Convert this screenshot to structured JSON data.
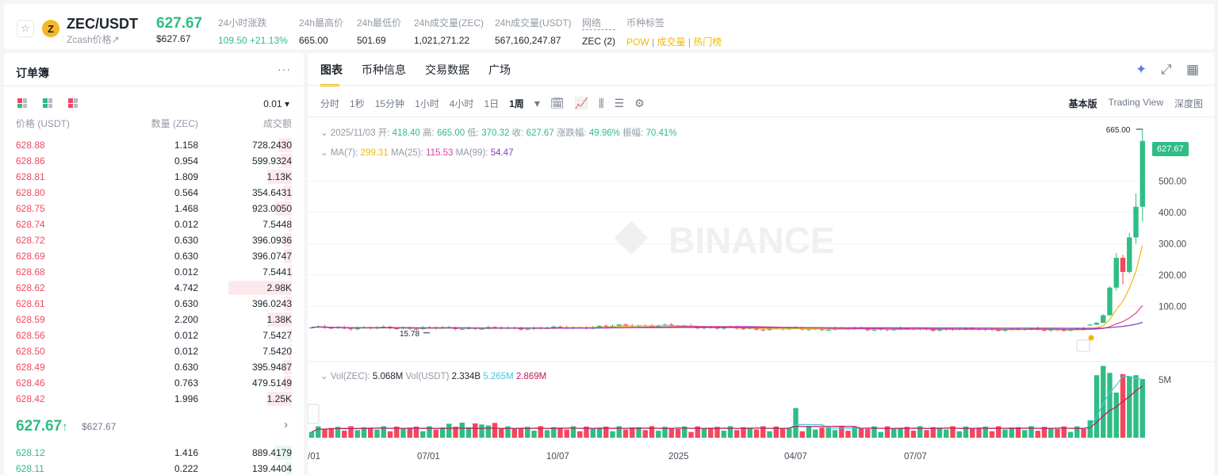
{
  "header": {
    "star_icon": "☆",
    "coin_icon": "Z",
    "symbol": "ZEC/USDT",
    "subtitle": "Zcash价格↗",
    "last_price": "627.67",
    "last_price_usd": "$627.67",
    "stats": [
      {
        "label": "24小时涨跌",
        "value": "109.50 +21.13%",
        "style": "up"
      },
      {
        "label": "24h最高价",
        "value": "665.00"
      },
      {
        "label": "24h最低价",
        "value": "501.69"
      },
      {
        "label": "24h成交量(ZEC)",
        "value": "1,021,271.22"
      },
      {
        "label": "24h成交量(USDT)",
        "value": "567,160,247.87"
      }
    ],
    "network_label": "网络",
    "network_value": "ZEC (2)",
    "tags_label": "币种标签",
    "tags": [
      "POW",
      "成交量",
      "热门榜"
    ]
  },
  "orderbook": {
    "title": "订单簿",
    "more": "···",
    "precision": "0.01 ▾",
    "head": {
      "price": "价格 (USDT)",
      "qty": "数量 (ZEC)",
      "total": "成交额"
    },
    "asks": [
      {
        "price": "628.88",
        "qty": "1.158",
        "total": "728.2430",
        "depth": 0.05
      },
      {
        "price": "628.86",
        "qty": "0.954",
        "total": "599.9324",
        "depth": 0.04
      },
      {
        "price": "628.81",
        "qty": "1.809",
        "total": "1.13K",
        "depth": 0.09
      },
      {
        "price": "628.80",
        "qty": "0.564",
        "total": "354.6431",
        "depth": 0.03
      },
      {
        "price": "628.75",
        "qty": "1.468",
        "total": "923.0050",
        "depth": 0.06
      },
      {
        "price": "628.74",
        "qty": "0.012",
        "total": "7.5448",
        "depth": 0.01
      },
      {
        "price": "628.72",
        "qty": "0.630",
        "total": "396.0936",
        "depth": 0.03
      },
      {
        "price": "628.69",
        "qty": "0.630",
        "total": "396.0747",
        "depth": 0.03
      },
      {
        "price": "628.68",
        "qty": "0.012",
        "total": "7.5441",
        "depth": 0.01
      },
      {
        "price": "628.62",
        "qty": "4.742",
        "total": "2.98K",
        "depth": 0.23
      },
      {
        "price": "628.61",
        "qty": "0.630",
        "total": "396.0243",
        "depth": 0.03
      },
      {
        "price": "628.59",
        "qty": "2.200",
        "total": "1.38K",
        "depth": 0.09
      },
      {
        "price": "628.56",
        "qty": "0.012",
        "total": "7.5427",
        "depth": 0.01
      },
      {
        "price": "628.50",
        "qty": "0.012",
        "total": "7.5420",
        "depth": 0.01
      },
      {
        "price": "628.49",
        "qty": "0.630",
        "total": "395.9487",
        "depth": 0.03
      },
      {
        "price": "628.46",
        "qty": "0.763",
        "total": "479.5149",
        "depth": 0.03
      },
      {
        "price": "628.42",
        "qty": "1.996",
        "total": "1.25K",
        "depth": 0.09
      }
    ],
    "mid_price": "627.67",
    "mid_arrow": "↑",
    "mid_usd": "$627.67",
    "mid_chevron": "›",
    "bids": [
      {
        "price": "628.12",
        "qty": "1.416",
        "total": "889.4179",
        "depth": 0.06
      },
      {
        "price": "628.11",
        "qty": "0.222",
        "total": "139.4404",
        "depth": 0.02
      }
    ]
  },
  "chart_panel": {
    "tabs": [
      "图表",
      "币种信息",
      "交易数据",
      "广场"
    ],
    "top_icons": [
      "sparkle-icon",
      "expand-icon",
      "layout-icon"
    ],
    "intervals": [
      "分时",
      "1秒",
      "15分钟",
      "1小时",
      "4小时",
      "1日",
      "1周"
    ],
    "active_interval": "1周",
    "modes": [
      "基本版",
      "Trading View",
      "深度图"
    ],
    "active_mode": "基本版",
    "ohlc": {
      "date": "2025/11/03",
      "open_label": "开:",
      "open": "418.40",
      "high_label": "高:",
      "high": "665.00",
      "low_label": "低:",
      "low": "370.32",
      "close_label": "收:",
      "close": "627.67",
      "chg_label": "涨跌幅:",
      "chg": "49.96%",
      "amp_label": "振幅:",
      "amp": "70.41%"
    },
    "ma": {
      "ma7_label": "MA(7):",
      "ma7": "299.31",
      "ma25_label": "MA(25):",
      "ma25": "115.53",
      "ma99_label": "MA(99):",
      "ma99": "54.47"
    },
    "vol": {
      "label1": "Vol(ZEC):",
      "v1": "5.068M",
      "label2": "Vol(USDT)",
      "v2": "2.334B",
      "v3": "5.265M",
      "v4": "2.869M"
    },
    "watermark": "BINANCE",
    "high_marker": "665.00",
    "low_marker": "15.78",
    "price_tag": "627.67"
  },
  "colors": {
    "up": "#2ebd85",
    "down": "#f6465d",
    "ma7": "#f0b90b",
    "ma25": "#e040a0",
    "ma99": "#8a3ab9",
    "vol_ma1": "#45c8d8",
    "vol_ma2": "#c2185b"
  },
  "chart_data": {
    "type": "candlestick",
    "interval": "1w",
    "y_ticks": [
      100,
      200,
      300,
      400,
      500
    ],
    "y_tick_labels": [
      "100.00",
      "200.00",
      "300.00",
      "400.00",
      "500.00"
    ],
    "vol_tick_labels": [
      "5M"
    ],
    "x_tick_labels": [
      "/01",
      "07/01",
      "10/07",
      "2025",
      "04/07",
      "07/07"
    ],
    "candles_tail": [
      {
        "o": 40,
        "h": 45,
        "l": 38,
        "c": 42
      },
      {
        "o": 42,
        "h": 50,
        "l": 41,
        "c": 48
      },
      {
        "o": 48,
        "h": 75,
        "l": 47,
        "c": 72
      },
      {
        "o": 72,
        "h": 165,
        "l": 70,
        "c": 160
      },
      {
        "o": 160,
        "h": 270,
        "l": 150,
        "c": 255
      },
      {
        "o": 255,
        "h": 265,
        "l": 170,
        "c": 210
      },
      {
        "o": 210,
        "h": 335,
        "l": 205,
        "c": 320
      },
      {
        "o": 320,
        "h": 460,
        "l": 300,
        "c": 418
      },
      {
        "o": 418,
        "h": 665,
        "l": 370,
        "c": 627.67
      }
    ],
    "volumes_tail": [
      1.5,
      5.4,
      6.2,
      5.6,
      3.9,
      5.5,
      5.3,
      5.4,
      5.07
    ]
  }
}
